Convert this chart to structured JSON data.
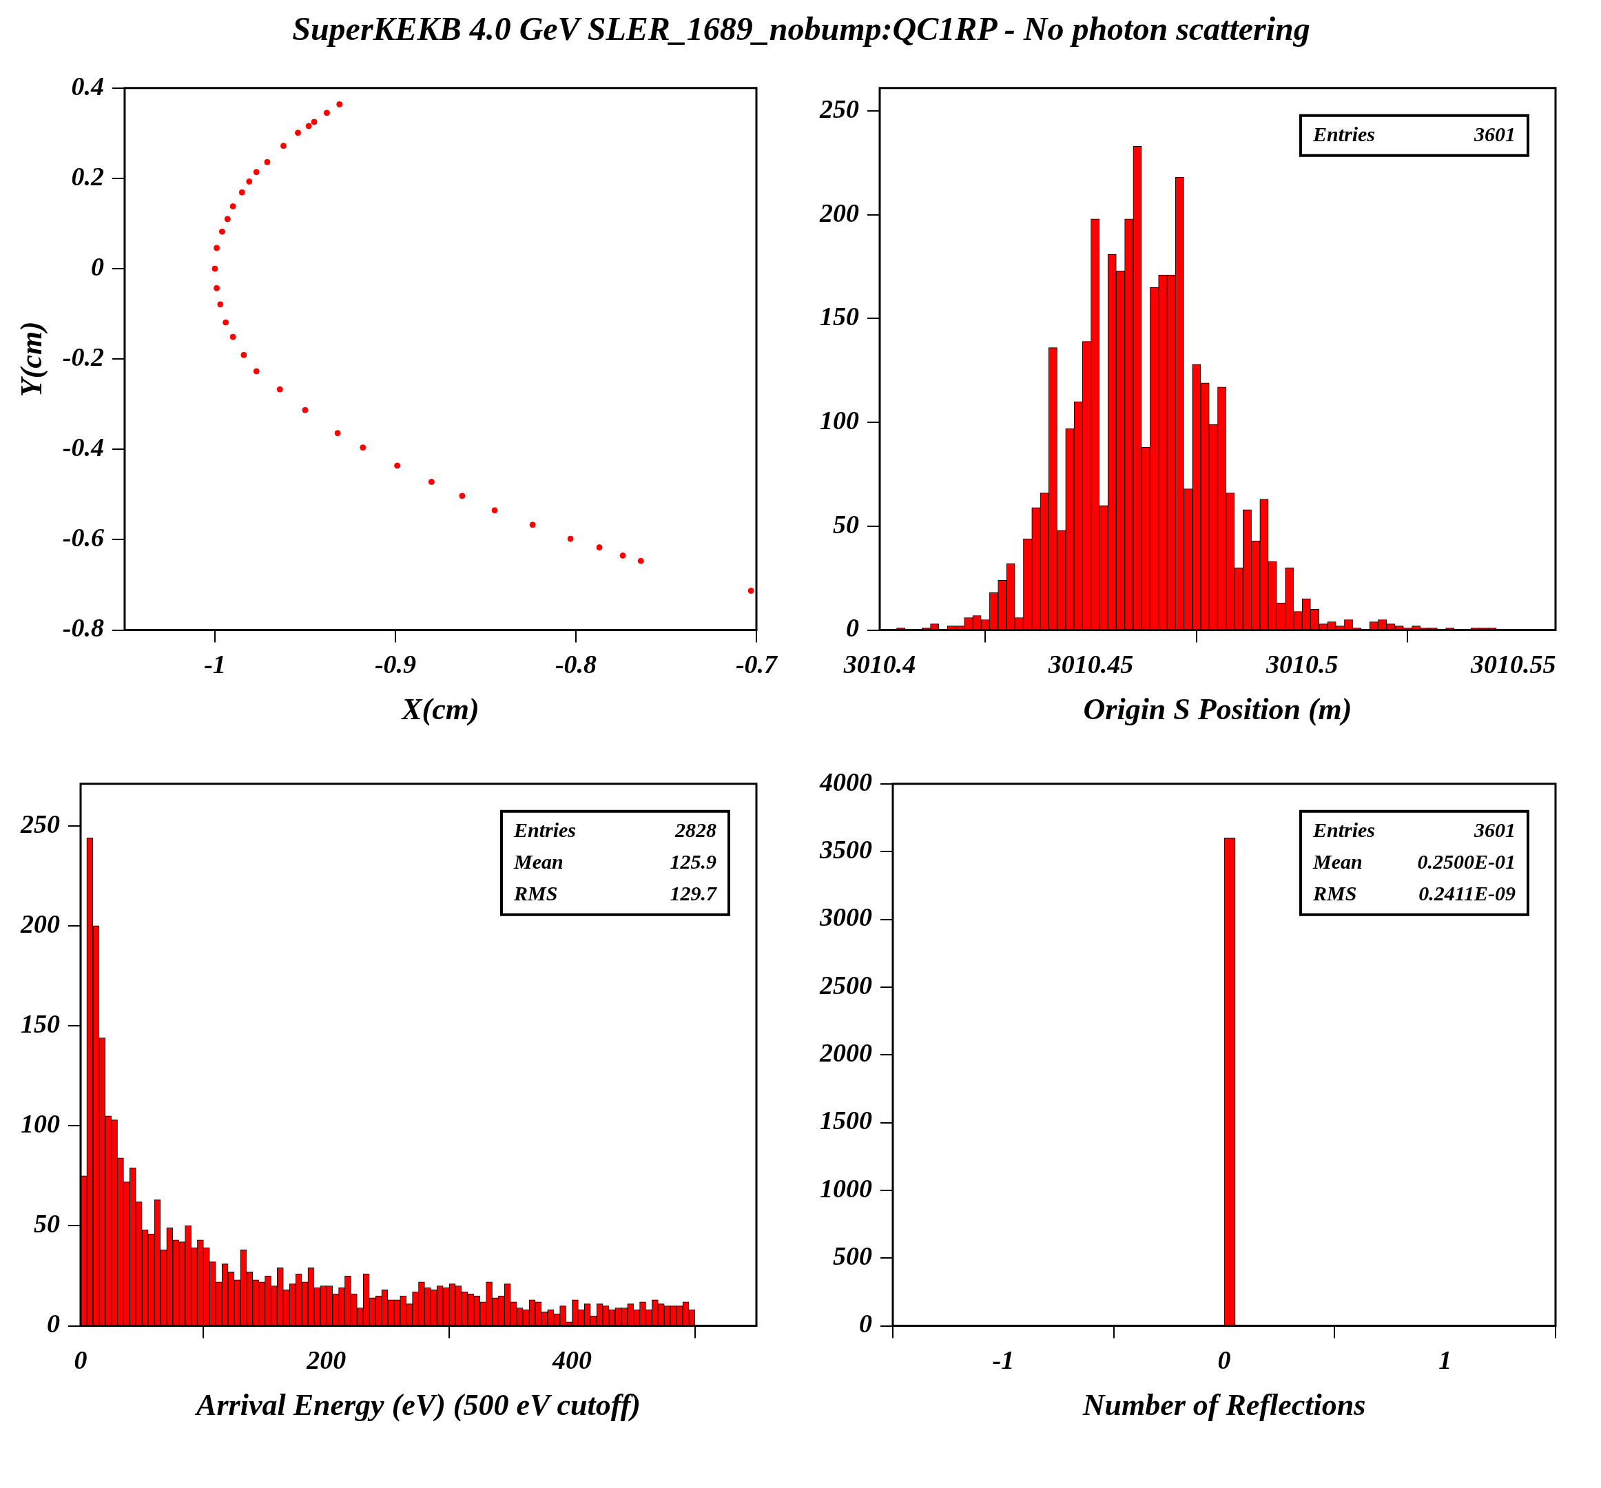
{
  "chart_data": [
    {
      "type": "scatter",
      "title": "SuperKEKB 4.0 GeV SLER_1689_nobump:QC1RP - No photon scattering",
      "xlabel": "X(cm)",
      "ylabel": "Y(cm)",
      "color": "#ff0000",
      "marker": "circle",
      "legend": false,
      "grid": false,
      "x": [
        -0.931,
        -0.938,
        -0.945,
        -0.948,
        -0.954,
        -0.962,
        -0.971,
        -0.977,
        -0.981,
        -0.985,
        -0.99,
        -0.993,
        -0.996,
        -0.999,
        -1.0,
        -0.999,
        -0.997,
        -0.994,
        -0.99,
        -0.984,
        -0.977,
        -0.964,
        -0.95,
        -0.932,
        -0.918,
        -0.899,
        -0.88,
        -0.863,
        -0.845,
        -0.824,
        -0.803,
        -0.787,
        -0.774,
        -0.764,
        -0.703
      ],
      "values": [
        0.364,
        0.345,
        0.325,
        0.316,
        0.301,
        0.272,
        0.236,
        0.214,
        0.193,
        0.169,
        0.138,
        0.11,
        0.082,
        0.046,
        0,
        -0.043,
        -0.079,
        -0.119,
        -0.151,
        -0.191,
        -0.227,
        -0.267,
        -0.313,
        -0.364,
        -0.396,
        -0.436,
        -0.472,
        -0.503,
        -0.535,
        -0.567,
        -0.598,
        -0.617,
        -0.635,
        -0.647,
        -0.713
      ],
      "xlim": [
        -1.05,
        -0.7
      ],
      "xticks": [
        -1,
        -0.9,
        -0.8,
        -0.7
      ],
      "ylim": [
        -0.8,
        0.4
      ],
      "yticks": [
        -0.8,
        -0.6,
        -0.4,
        -0.2,
        0,
        0.2,
        0.4
      ]
    },
    {
      "type": "histogram",
      "xlabel": "Origin S Position (m)",
      "color": "#ff0000",
      "legend": false,
      "grid": false,
      "annotations": [
        "Entries 3601"
      ],
      "bins": [
        3010.4,
        3010.402,
        3010.404,
        3010.406,
        3010.408,
        3010.41,
        3010.412,
        3010.414,
        3010.416,
        3010.418,
        3010.42,
        3010.422,
        3010.424,
        3010.426,
        3010.428,
        3010.43,
        3010.432,
        3010.434,
        3010.436,
        3010.438,
        3010.44,
        3010.442,
        3010.444,
        3010.446,
        3010.448,
        3010.45,
        3010.452,
        3010.454,
        3010.456,
        3010.458,
        3010.46,
        3010.462,
        3010.464,
        3010.466,
        3010.468,
        3010.47,
        3010.472,
        3010.474,
        3010.476,
        3010.478,
        3010.48,
        3010.482,
        3010.484,
        3010.486,
        3010.488,
        3010.49,
        3010.492,
        3010.494,
        3010.496,
        3010.498,
        3010.5,
        3010.502,
        3010.504,
        3010.506,
        3010.508,
        3010.51,
        3010.512,
        3010.514,
        3010.516,
        3010.518,
        3010.52,
        3010.522,
        3010.524,
        3010.526,
        3010.528,
        3010.53,
        3010.532,
        3010.534,
        3010.536,
        3010.538,
        3010.54,
        3010.542,
        3010.544,
        3010.546,
        3010.548,
        3010.55,
        3010.552,
        3010.554,
        3010.556,
        3010.558,
        3010.56
      ],
      "values": [
        0,
        0,
        1,
        0,
        0,
        1,
        3,
        0,
        2,
        2,
        6,
        7,
        5,
        18,
        24,
        32,
        6,
        44,
        59,
        66,
        136,
        48,
        97,
        110,
        139,
        198,
        60,
        181,
        173,
        198,
        233,
        88,
        165,
        171,
        171,
        218,
        68,
        128,
        119,
        99,
        117,
        66,
        30,
        58,
        43,
        63,
        33,
        13,
        30,
        9,
        15,
        10,
        3,
        4,
        2,
        5,
        1,
        0,
        4,
        5,
        3,
        2,
        1,
        2,
        1,
        1,
        0,
        1,
        0,
        0,
        1,
        1,
        1,
        0,
        0,
        0,
        0,
        0,
        0,
        0
      ],
      "xlim": [
        3010.4,
        3010.56
      ],
      "xticks": [
        3010.4,
        3010.45,
        3010.5,
        3010.55
      ],
      "ylim": [
        0,
        261
      ],
      "yticks": [
        0,
        50,
        100,
        150,
        200,
        250
      ]
    },
    {
      "type": "histogram",
      "xlabel": "Arrival Energy (eV) (500 eV cutoff)",
      "color": "#ff0000",
      "legend": false,
      "grid": false,
      "annotations": [
        "Entries 2828",
        "Mean 125.9",
        "RMS 129.7"
      ],
      "bins": [
        0,
        5,
        10,
        15,
        20,
        25,
        30,
        35,
        40,
        45,
        50,
        55,
        60,
        65,
        70,
        75,
        80,
        85,
        90,
        95,
        100,
        105,
        110,
        115,
        120,
        125,
        130,
        135,
        140,
        145,
        150,
        155,
        160,
        165,
        170,
        175,
        180,
        185,
        190,
        195,
        200,
        205,
        210,
        215,
        220,
        225,
        230,
        235,
        240,
        245,
        250,
        255,
        260,
        265,
        270,
        275,
        280,
        285,
        290,
        295,
        300,
        305,
        310,
        315,
        320,
        325,
        330,
        335,
        340,
        345,
        350,
        355,
        360,
        365,
        370,
        375,
        380,
        385,
        390,
        395,
        400,
        405,
        410,
        415,
        420,
        425,
        430,
        435,
        440,
        445,
        450,
        455,
        460,
        465,
        470,
        475,
        480,
        485,
        490,
        495,
        500
      ],
      "values": [
        75,
        244,
        200,
        144,
        105,
        103,
        84,
        72,
        79,
        62,
        48,
        46,
        63,
        38,
        49,
        43,
        42,
        50,
        39,
        43,
        39,
        32,
        22,
        31,
        27,
        23,
        38,
        27,
        23,
        22,
        25,
        20,
        29,
        18,
        21,
        26,
        22,
        29,
        19,
        20,
        20,
        16,
        19,
        25,
        16,
        9,
        26,
        14,
        15,
        18,
        13,
        13,
        15,
        11,
        17,
        22,
        19,
        18,
        20,
        19,
        21,
        20,
        17,
        16,
        15,
        12,
        22,
        14,
        15,
        21,
        12,
        9,
        8,
        13,
        12,
        7,
        8,
        6,
        10,
        2,
        13,
        8,
        11,
        5,
        11,
        10,
        8,
        9,
        9,
        11,
        8,
        12,
        8,
        13,
        11,
        10,
        10,
        10,
        12,
        8
      ],
      "xlim": [
        0,
        550
      ],
      "xticks": [
        0,
        200,
        400
      ],
      "ylim": [
        0,
        271
      ],
      "yticks": [
        0,
        50,
        100,
        150,
        200,
        250
      ]
    },
    {
      "type": "histogram",
      "xlabel": "Number of Reflections",
      "color": "#ff0000",
      "legend": false,
      "grid": false,
      "annotations": [
        "Entries 3601",
        "Mean 0.2500E-01",
        "RMS 0.2411E-09"
      ],
      "bins": [
        -1.5,
        -1.45,
        -1.4,
        -1.35,
        -1.3,
        -1.25,
        -1.2,
        -1.15,
        -1.1,
        -1.05,
        -1,
        -0.95,
        -0.9,
        -0.85,
        -0.8,
        -0.75,
        -0.7,
        -0.65,
        -0.6,
        -0.55,
        -0.5,
        -0.45,
        -0.4,
        -0.35,
        -0.3,
        -0.25,
        -0.2,
        -0.15,
        -0.1,
        -0.05,
        0,
        0.05,
        0.1,
        0.15,
        0.2,
        0.25,
        0.3,
        0.35,
        0.4,
        0.45,
        0.5,
        0.55,
        0.6,
        0.65,
        0.7,
        0.75,
        0.8,
        0.85,
        0.9,
        0.95,
        1,
        1.05,
        1.1,
        1.15,
        1.2,
        1.25,
        1.3,
        1.35,
        1.4,
        1.45,
        1.5
      ],
      "values": [
        0,
        0,
        0,
        0,
        0,
        0,
        0,
        0,
        0,
        0,
        0,
        0,
        0,
        0,
        0,
        0,
        0,
        0,
        0,
        0,
        0,
        0,
        0,
        0,
        0,
        0,
        0,
        0,
        0,
        0,
        3601,
        0,
        0,
        0,
        0,
        0,
        0,
        0,
        0,
        0,
        0,
        0,
        0,
        0,
        0,
        0,
        0,
        0,
        0,
        0,
        0,
        0,
        0,
        0,
        0,
        0,
        0,
        0,
        0,
        0
      ],
      "xlim": [
        -1.5,
        1.5
      ],
      "xticks": [
        -1,
        0,
        1
      ],
      "ylim": [
        0,
        4000
      ],
      "yticks": [
        0,
        500,
        1000,
        1500,
        2000,
        2500,
        3000,
        3500,
        4000
      ]
    }
  ]
}
